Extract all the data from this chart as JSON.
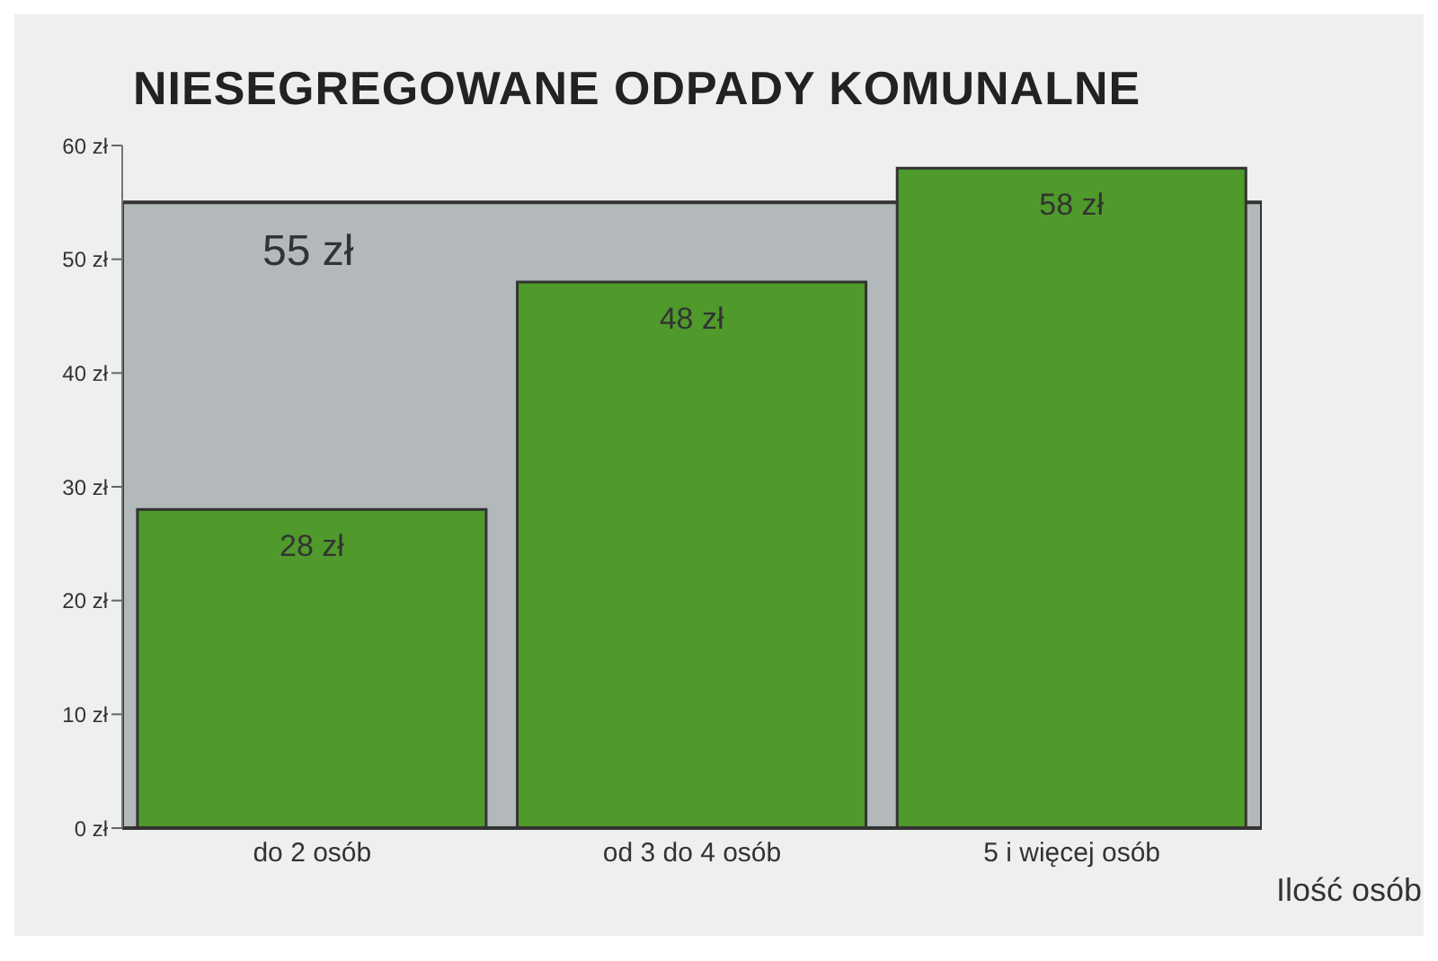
{
  "chart_data": {
    "type": "bar",
    "title": "NIESEGREGOWANE ODPADY KOMUNALNE",
    "xlabel": "Ilość osób",
    "categories": [
      "do 2 osób",
      "od 3 do 4 osób",
      "5 i więcej osób"
    ],
    "values": [
      28,
      48,
      58
    ],
    "color": "#4f9a2a",
    "value_labels": [
      "28 zł",
      "48 zł",
      "58 zł"
    ],
    "ylim": [
      0,
      60
    ],
    "yticks": [
      {
        "value": 0,
        "label": "0 zł"
      },
      {
        "value": 10,
        "label": "10 zł"
      },
      {
        "value": 20,
        "label": "20 zł"
      },
      {
        "value": 30,
        "label": "30 zł"
      },
      {
        "value": 40,
        "label": "40 zł"
      },
      {
        "value": 50,
        "label": "50 zł"
      },
      {
        "value": 60,
        "label": "60 zł"
      }
    ],
    "bands": [
      {
        "axis": "y",
        "from": 0,
        "to": 55,
        "label": "55 zł",
        "color": "#b3b8bb"
      }
    ]
  }
}
